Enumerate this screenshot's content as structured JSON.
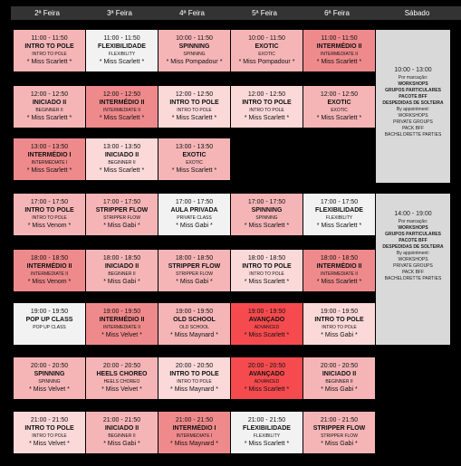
{
  "colors": {
    "white": "#f2f2f2",
    "light": "#fbd9d9",
    "pink": "#f5b5b7",
    "medium": "#ef8a8c",
    "strong": "#f54b4e",
    "saturday": "#d9d9d9",
    "header": "#333333"
  },
  "days": [
    "2ª Feira",
    "3ª Feira",
    "4ª Feira",
    "5ª Feira",
    "6ª Feira",
    "Sábado"
  ],
  "rows": [
    [
      {
        "time": "11:00 - 11:50",
        "class": "INTRO TO POLE",
        "sub": "INTRO TO POLE",
        "instructor": "* Miss Scarlett *",
        "tone": "pink"
      },
      {
        "time": "11:00 - 11:50",
        "class": "FLEXIBILIDADE",
        "sub": "FLEXIBILITY",
        "instructor": "* Miss Scarlett *",
        "tone": "white"
      },
      {
        "time": "10:00 - 11:50",
        "class": "SPINNING",
        "sub": "SPINNING",
        "instructor": "* Miss Pompadour *",
        "tone": "pink"
      },
      {
        "time": "10:00 - 11:50",
        "class": "EXOTIC",
        "sub": "EXOTIC",
        "instructor": "* Miss Pompadour *",
        "tone": "pink"
      },
      {
        "time": "11:00 - 11:50",
        "class": "INTERMÉDIO II",
        "sub": "INTERMEDIATE II",
        "instructor": "* Miss Scarlett *",
        "tone": "medium"
      }
    ],
    [
      {
        "time": "12:00 - 12:50",
        "class": "INICIADO II",
        "sub": "BEGINNER II",
        "instructor": "* Miss Scarlett *",
        "tone": "pink"
      },
      {
        "time": "12:00 - 12:50",
        "class": "INTERMÉDIO II",
        "sub": "INTERMEDIATE II",
        "instructor": "* Miss Scarlett *",
        "tone": "medium"
      },
      {
        "time": "12:00 - 12:50",
        "class": "INTRO TO POLE",
        "sub": "INTRO TO POLE",
        "instructor": "* Miss Scarlett *",
        "tone": "light"
      },
      {
        "time": "12:00 - 12:50",
        "class": "INTRO TO POLE",
        "sub": "INTRO TO POLE",
        "instructor": "* Miss Scarlett *",
        "tone": "light"
      },
      {
        "time": "12:00 - 12:50",
        "class": "EXOTIC",
        "sub": "EXOTIC",
        "instructor": "* Miss Scarlett *",
        "tone": "pink"
      }
    ],
    [
      {
        "time": "13:00 - 13:50",
        "class": "INTERMÉDIO I",
        "sub": "INTERMEDIATE I",
        "instructor": "* Miss Scarlett *",
        "tone": "medium"
      },
      {
        "time": "13:00 - 13:50",
        "class": "INICIADO II",
        "sub": "BEGINNER II",
        "instructor": "* Miss Scarlett *",
        "tone": "light"
      },
      {
        "time": "13:00 - 13:50",
        "class": "EXOTIC",
        "sub": "EXOTIC",
        "instructor": "* Miss Scarlett *",
        "tone": "pink"
      },
      null,
      null
    ],
    [
      {
        "time": "17:00 - 17:50",
        "class": "INTRO TO POLE",
        "sub": "INTRO TO POLE",
        "instructor": "* Miss Venom *",
        "tone": "pink"
      },
      {
        "time": "17:00 - 17:50",
        "class": "STRIPPER FLOW",
        "sub": "STRIPPER FLOW",
        "instructor": "* Miss Gabi *",
        "tone": "pink"
      },
      {
        "time": "17:00 - 17:50",
        "class": "AULA PRIVADA",
        "sub": "PRIVATE CLASS",
        "instructor": "* Miss Gabi *",
        "tone": "white"
      },
      {
        "time": "17:00 - 17:50",
        "class": "SPINNING",
        "sub": "SPINNING",
        "instructor": "* Miss Scarlett *",
        "tone": "pink"
      },
      {
        "time": "17:00 - 17:50",
        "class": "FLEXIBILIDADE",
        "sub": "FLEXIBILITY",
        "instructor": "* Miss Scarlett *",
        "tone": "white"
      }
    ],
    [
      {
        "time": "18:00 - 18:50",
        "class": "INTERMÉDIO II",
        "sub": "INTERMEDIATE II",
        "instructor": "* Miss Venom *",
        "tone": "medium"
      },
      {
        "time": "18:00 - 18:50",
        "class": "INICIADO II",
        "sub": "BEGINNER II",
        "instructor": "* Miss Gabi *",
        "tone": "pink"
      },
      {
        "time": "18:00 - 18:50",
        "class": "STRIPPER FLOW",
        "sub": "STRIPPER FLOW",
        "instructor": "* Miss Gabi *",
        "tone": "pink"
      },
      {
        "time": "18:00 - 18:50",
        "class": "INTRO TO POLE",
        "sub": "INTRO TO POLE",
        "instructor": "* Miss Scarlett *",
        "tone": "light"
      },
      {
        "time": "18:00 - 18:50",
        "class": "INTERMÉDIO II",
        "sub": "INTERMEDIATE II",
        "instructor": "* Miss Scarlett *",
        "tone": "medium"
      }
    ],
    [
      {
        "time": "19:00 - 19:50",
        "class": "POP UP CLASS",
        "sub": "POP UP CLASS",
        "instructor": "",
        "tone": "white"
      },
      {
        "time": "19:00 - 19:50",
        "class": "INTERMÉDIO II",
        "sub": "INTERMEDIATE II",
        "instructor": "* Miss Velvet *",
        "tone": "medium"
      },
      {
        "time": "19:00 - 19:50",
        "class": "OLD SCHOOL",
        "sub": "OLD SCHOOL",
        "instructor": "* Miss Maynard *",
        "tone": "pink"
      },
      {
        "time": "19:00 - 19:50",
        "class": "AVANÇADO",
        "sub": "ADVANCED",
        "instructor": "* Miss Scarlett *",
        "tone": "strong"
      },
      {
        "time": "19:00 - 19:50",
        "class": "INTRO TO POLE",
        "sub": "INTRO TO POLE",
        "instructor": "* Miss Gabi *",
        "tone": "light"
      }
    ],
    [
      {
        "time": "20:00 - 20:50",
        "class": "SPINNING",
        "sub": "SPINNING",
        "instructor": "* Miss Velvet *",
        "tone": "pink"
      },
      {
        "time": "20:00 - 20:50",
        "class": "HEELS CHOREO",
        "sub": "HEELS CHOREO",
        "instructor": "* Miss Velvet *",
        "tone": "pink"
      },
      {
        "time": "20:00 - 20:50",
        "class": "INTRO TO POLE",
        "sub": "INTRO TO POLE",
        "instructor": "* Miss Maynard *",
        "tone": "light"
      },
      {
        "time": "20:00 - 20:50",
        "class": "AVANÇADO",
        "sub": "ADVANCED",
        "instructor": "* Miss Scarlett *",
        "tone": "strong"
      },
      {
        "time": "20:00 - 20:50",
        "class": "INICIADO II",
        "sub": "BEGINNER II",
        "instructor": "* Miss Gabi *",
        "tone": "pink"
      }
    ],
    [
      {
        "time": "21:00 - 21:50",
        "class": "INTRO TO POLE",
        "sub": "INTRO TO POLE",
        "instructor": "* Miss Velvet *",
        "tone": "light"
      },
      {
        "time": "21:00 - 21:50",
        "class": "INICIADO II",
        "sub": "BEGINNER II",
        "instructor": "* Miss Gabi *",
        "tone": "pink"
      },
      {
        "time": "21:00 - 21:50",
        "class": "INTERMÉDIO I",
        "sub": "INTERMEDIATE I",
        "instructor": "* Miss Maynard *",
        "tone": "medium"
      },
      {
        "time": "21:00 - 21:50",
        "class": "FLEXIBILIDADE",
        "sub": "FLEXIBILITY",
        "instructor": "* Miss Scarlett *",
        "tone": "white"
      },
      {
        "time": "21:00 - 21:50",
        "class": "STRIPPER FLOW",
        "sub": "STRIPPER FLOW",
        "instructor": "* Miss Gabi *",
        "tone": "pink"
      }
    ]
  ],
  "saturday": [
    {
      "time": "10:00 - 13:00",
      "pre": "Por marcação:",
      "bold": [
        "WORKSHOPS",
        "GRUPOS PARTICULARES",
        "PACOTE BFF",
        "DESPEDIDAS DE SOLTEIRA"
      ],
      "note": "By appointment:",
      "extra": [
        "WORKSHOPS",
        "PRIVATE GROUPS",
        "PACK BFF",
        "BACHELORETTE PARTIES"
      ]
    },
    {
      "time": "14:00 - 19:00",
      "pre": "Por marcação:",
      "bold": [
        "WORKSHOPS",
        "GRUPOS PARTICULARES",
        "PACOTE BFF",
        "DESPEDIDAS DE SOLTEIRA"
      ],
      "note": "By appointment:",
      "extra": [
        "WORKSHOPS",
        "PRIVATE GROUPS",
        "PACK BFF",
        "BACHELORETTE PARTIES"
      ]
    }
  ]
}
